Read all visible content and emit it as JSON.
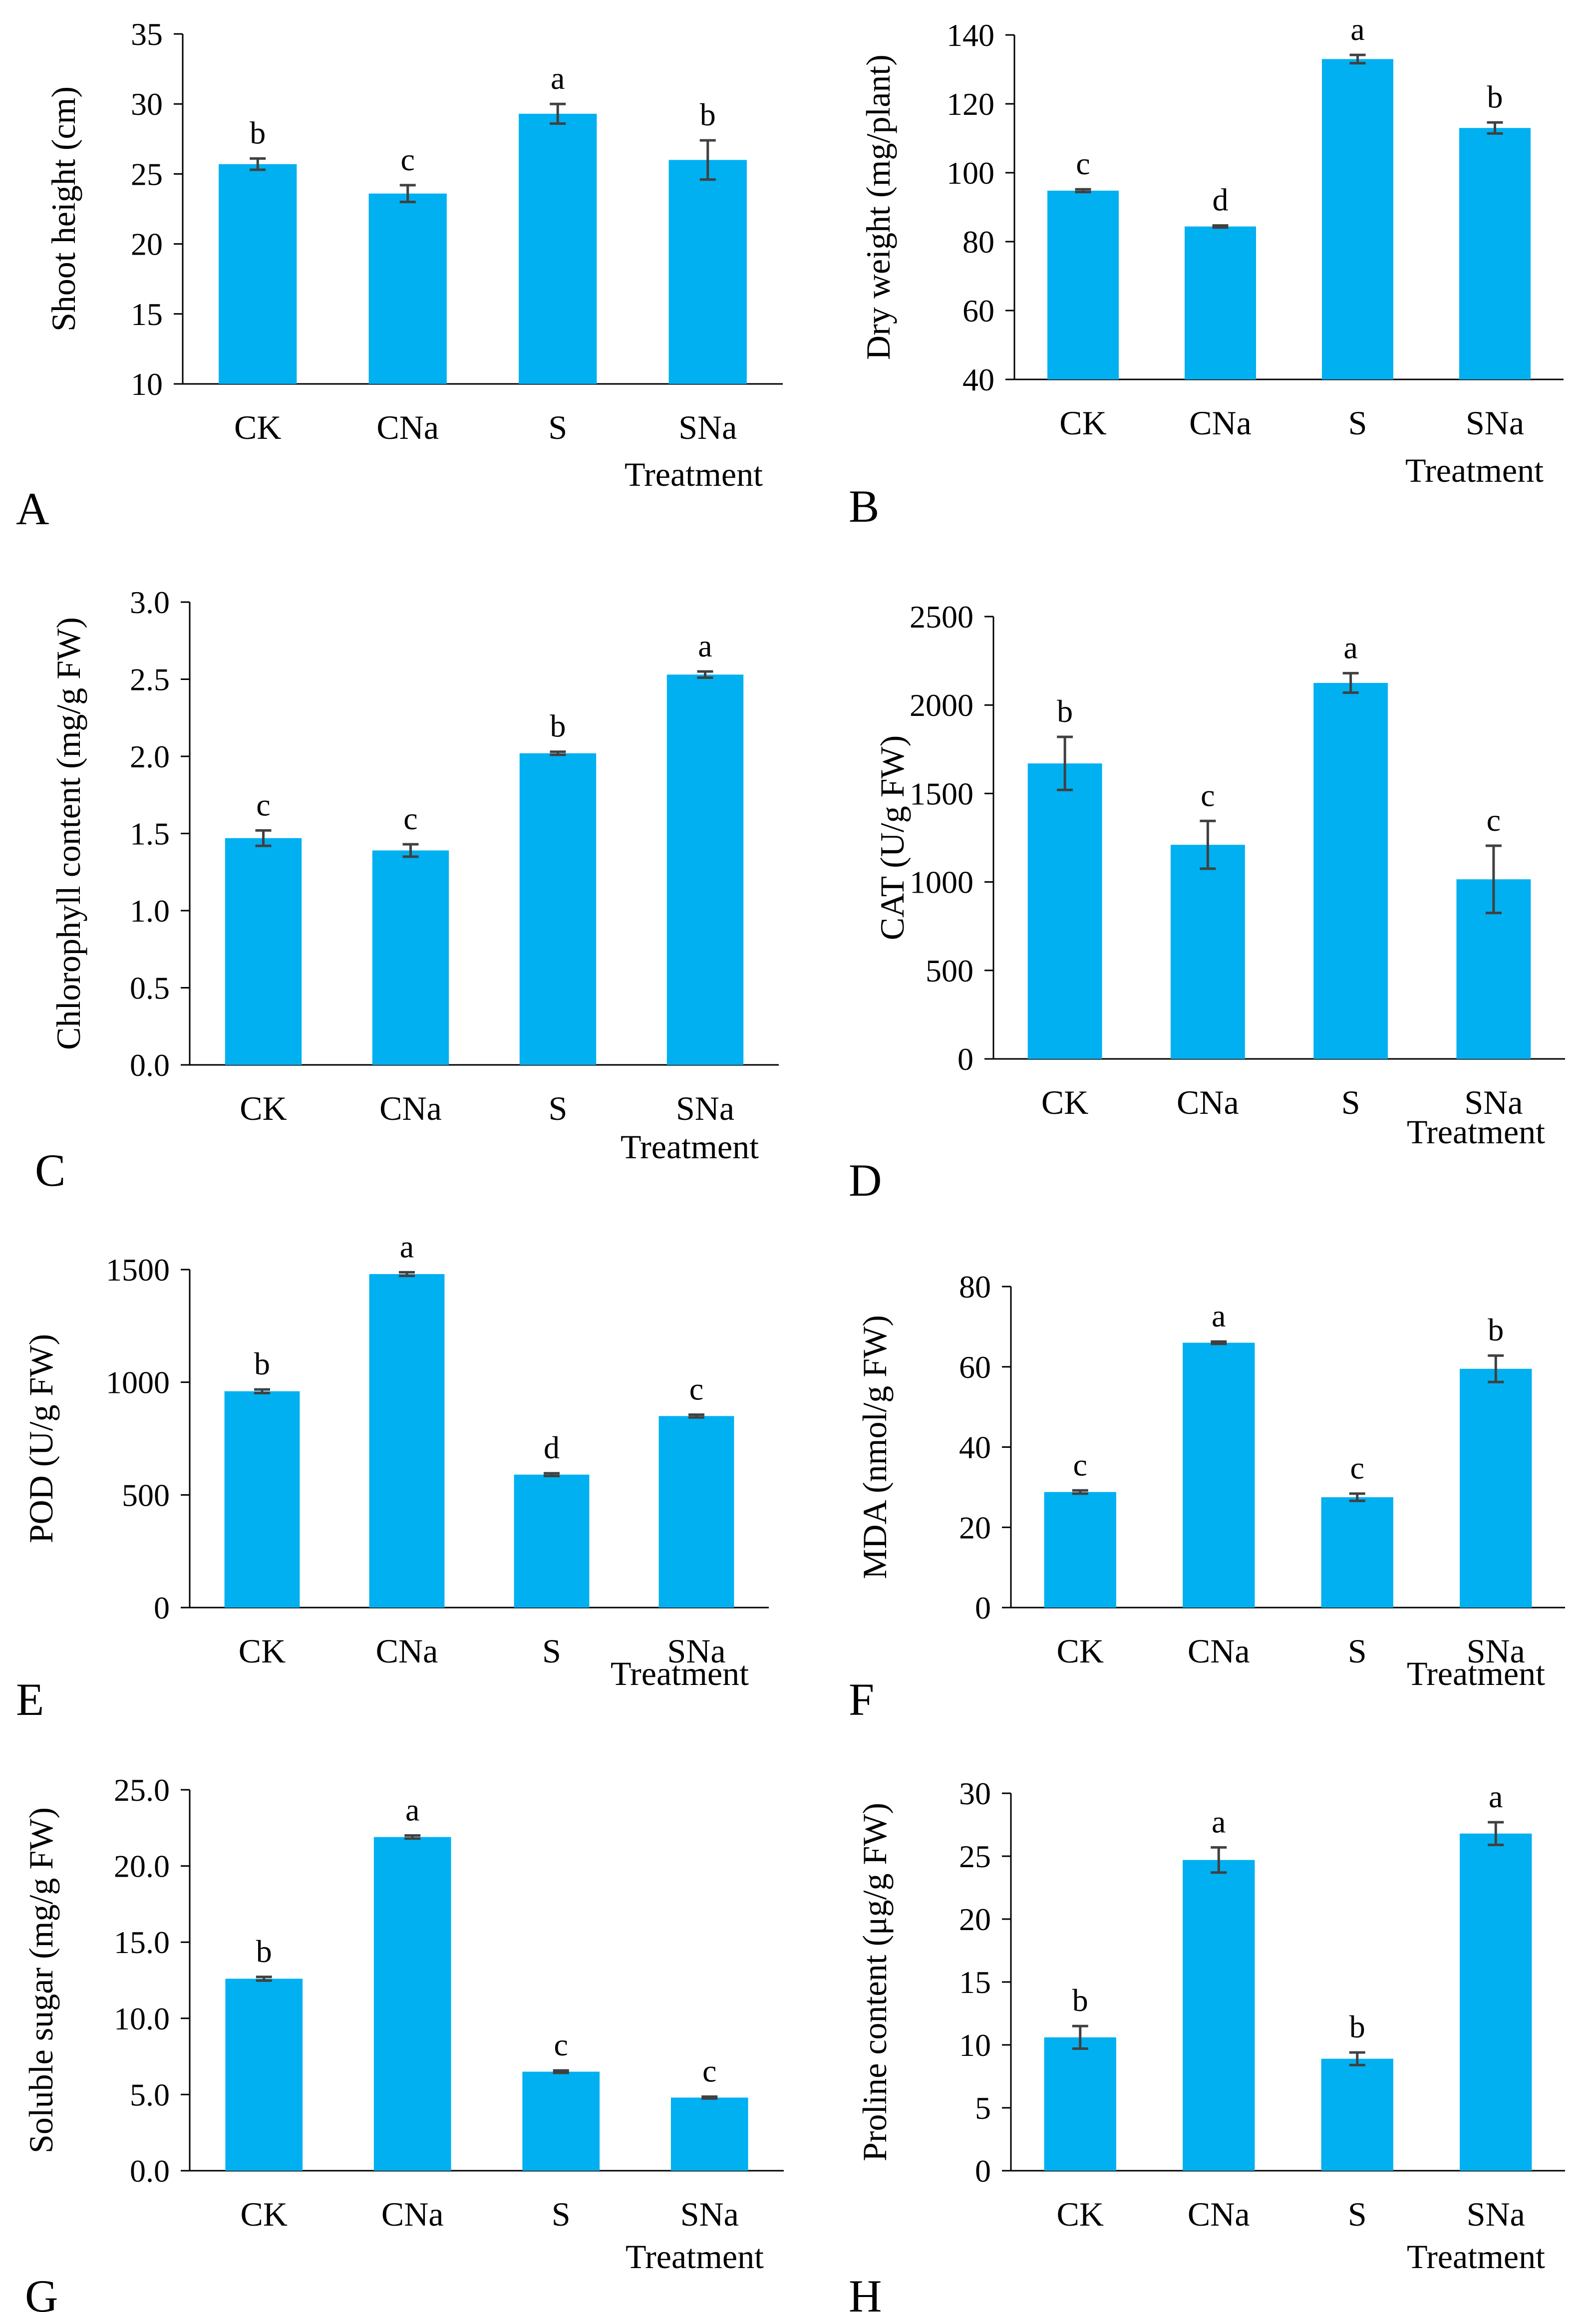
{
  "figure": {
    "background": "#ffffff",
    "bar_color": "#00b0f0",
    "axis_color": "#000000",
    "error_bar_color": "#404040"
  },
  "chart_data": [
    {
      "panel": "A",
      "type": "bar",
      "ylabel": "Shoot height (cm)",
      "xlabel": "Treatment",
      "categories": [
        "CK",
        "CNa",
        "S",
        "SNa"
      ],
      "values": [
        25.7,
        23.6,
        29.3,
        26.0
      ],
      "errors": [
        0.4,
        0.6,
        0.7,
        1.4
      ],
      "letters": [
        "b",
        "c",
        "a",
        "b"
      ],
      "ylim": [
        10,
        35
      ],
      "yticks": [
        "10",
        "15",
        "20",
        "25",
        "30",
        "35"
      ]
    },
    {
      "panel": "B",
      "type": "bar",
      "ylabel": "Dry weight (mg/plant)",
      "xlabel": "Treatment",
      "categories": [
        "CK",
        "CNa",
        "S",
        "SNa"
      ],
      "values": [
        94.8,
        84.4,
        133.0,
        113.0
      ],
      "errors": [
        0.4,
        0.3,
        1.2,
        1.6
      ],
      "letters": [
        "c",
        "d",
        "a",
        "b"
      ],
      "ylim": [
        40,
        140
      ],
      "yticks": [
        "40",
        "60",
        "80",
        "100",
        "120",
        "140"
      ]
    },
    {
      "panel": "C",
      "type": "bar",
      "ylabel": "Chlorophyll content (mg/g FW)",
      "xlabel": "Treatment",
      "categories": [
        "CK",
        "CNa",
        "S",
        "SNa"
      ],
      "values": [
        1.47,
        1.39,
        2.02,
        2.53
      ],
      "errors": [
        0.05,
        0.04,
        0.01,
        0.02
      ],
      "letters": [
        "c",
        "c",
        "b",
        "a"
      ],
      "ylim": [
        0,
        3
      ],
      "yticks": [
        "0.0",
        "0.5",
        "1.0",
        "1.5",
        "2.0",
        "2.5",
        "3.0"
      ]
    },
    {
      "panel": "D",
      "type": "bar",
      "ylabel": "CAT (U/g FW)",
      "xlabel": "Treatment",
      "categories": [
        "CK",
        "CNa",
        "S",
        "SNa"
      ],
      "values": [
        1670,
        1210,
        2125,
        1015
      ],
      "errors": [
        150,
        135,
        55,
        190
      ],
      "letters": [
        "b",
        "c",
        "a",
        "c"
      ],
      "ylim": [
        0,
        2500
      ],
      "yticks": [
        "0",
        "500",
        "1000",
        "1500",
        "2000",
        "2500"
      ]
    },
    {
      "panel": "E",
      "type": "bar",
      "ylabel": "POD (U/g FW)",
      "xlabel": "Treatment",
      "categories": [
        "CK",
        "CNa",
        "S",
        "SNa"
      ],
      "values": [
        960,
        1480,
        590,
        850
      ],
      "errors": [
        8,
        8,
        6,
        6
      ],
      "letters": [
        "b",
        "a",
        "d",
        "c"
      ],
      "ylim": [
        0,
        1500
      ],
      "yticks": [
        "0",
        "500",
        "1000",
        "1500"
      ]
    },
    {
      "panel": "F",
      "type": "bar",
      "ylabel": "MDA (nmol/g FW)",
      "xlabel": "Treatment",
      "categories": [
        "CK",
        "CNa",
        "S",
        "SNa"
      ],
      "values": [
        28.8,
        66.0,
        27.5,
        59.5
      ],
      "errors": [
        0.4,
        0.3,
        0.9,
        3.3
      ],
      "letters": [
        "c",
        "a",
        "c",
        "b"
      ],
      "ylim": [
        0,
        80
      ],
      "yticks": [
        "0",
        "20",
        "40",
        "60",
        "80"
      ]
    },
    {
      "panel": "G",
      "type": "bar",
      "ylabel": "Soluble sugar (mg/g FW)",
      "xlabel": "Treatment",
      "categories": [
        "CK",
        "CNa",
        "S",
        "SNa"
      ],
      "values": [
        12.6,
        21.9,
        6.5,
        4.8
      ],
      "errors": [
        0.12,
        0.1,
        0.08,
        0.06
      ],
      "letters": [
        "b",
        "a",
        "c",
        "c"
      ],
      "ylim": [
        0,
        25
      ],
      "yticks": [
        "0.0",
        "5.0",
        "10.0",
        "15.0",
        "20.0",
        "25.0"
      ]
    },
    {
      "panel": "H",
      "type": "bar",
      "ylabel": "Proline content (μg/g FW)",
      "xlabel": "Treatment",
      "categories": [
        "CK",
        "CNa",
        "S",
        "SNa"
      ],
      "values": [
        10.6,
        24.7,
        8.9,
        26.8
      ],
      "errors": [
        0.9,
        1.0,
        0.5,
        0.9
      ],
      "letters": [
        "b",
        "a",
        "b",
        "a"
      ],
      "ylim": [
        0,
        30
      ],
      "yticks": [
        "0",
        "5",
        "10",
        "15",
        "20",
        "25",
        "30"
      ]
    }
  ]
}
